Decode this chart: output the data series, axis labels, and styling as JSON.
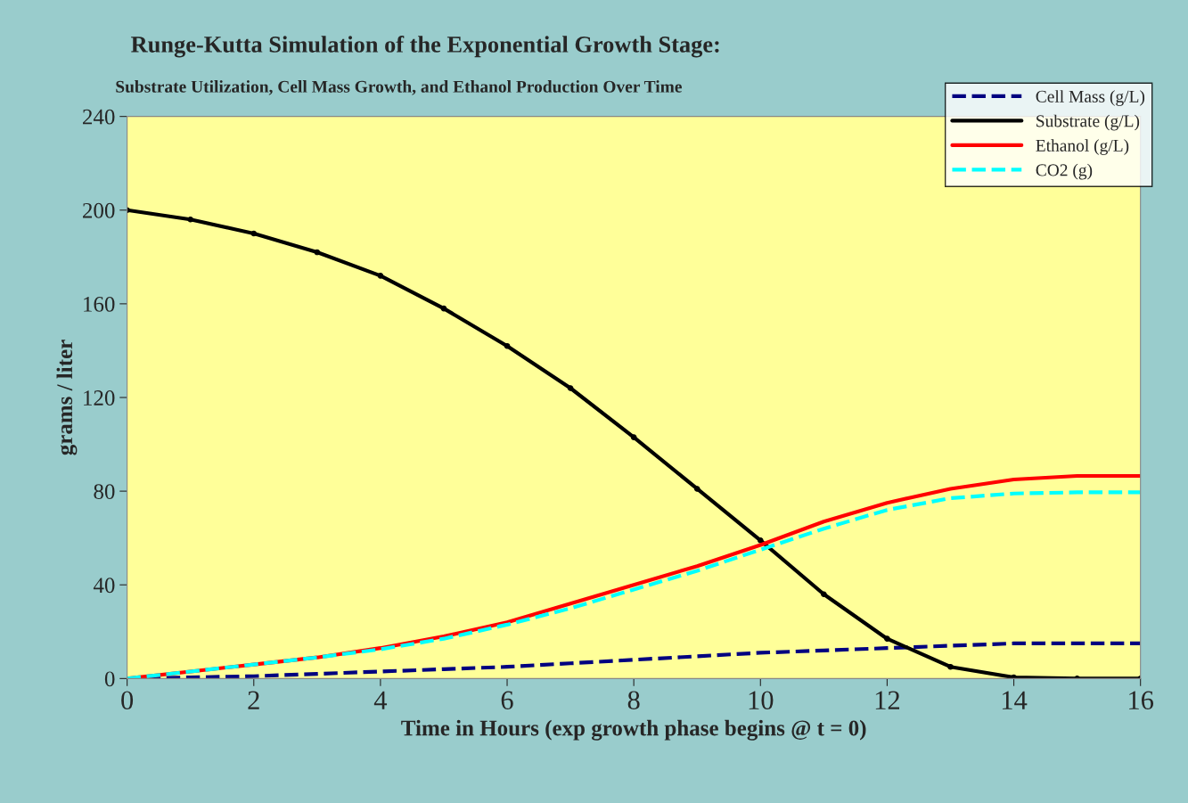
{
  "chart_data": {
    "type": "line",
    "title": "Runge-Kutta Simulation of the Exponential Growth Stage:",
    "subtitle": "Substrate Utilization, Cell Mass Growth, and Ethanol Production Over Time",
    "xlabel": "Time in Hours (exp growth phase begins @ t = 0)",
    "ylabel": "grams / liter",
    "x": [
      0,
      1,
      2,
      3,
      4,
      5,
      6,
      7,
      8,
      9,
      10,
      11,
      12,
      13,
      14,
      15,
      16
    ],
    "series": [
      {
        "name": "Cell Mass (g/L)",
        "color": "#000080",
        "line_style": "dashed",
        "values": [
          0,
          0.5,
          1,
          2,
          3,
          4,
          5,
          6.5,
          8,
          9.5,
          11,
          12,
          13,
          14,
          15,
          15,
          15
        ]
      },
      {
        "name": "Substrate (g/L)",
        "color": "#000000",
        "marker": "circle",
        "values": [
          200,
          196,
          190,
          182,
          172,
          158,
          142,
          124,
          103,
          81,
          59,
          36,
          17,
          5,
          0.5,
          0,
          0
        ]
      },
      {
        "name": "Ethanol (g/L)",
        "color": "#ff0000",
        "values": [
          0,
          3,
          6,
          9,
          13,
          18,
          24,
          32,
          40,
          48,
          57,
          67,
          75,
          81,
          85,
          86.5,
          86.5
        ]
      },
      {
        "name": "CO2 (g)",
        "color": "#00ffff",
        "line_style": "dashed",
        "values": [
          0,
          3,
          6,
          9,
          12.5,
          17,
          23,
          30,
          38,
          46,
          55,
          64,
          72,
          77,
          79,
          79.5,
          79.5
        ]
      }
    ],
    "xlim": [
      0,
      16
    ],
    "xticks": [
      0,
      2,
      4,
      6,
      8,
      10,
      12,
      14,
      16
    ],
    "ylim": [
      0,
      240
    ],
    "yticks": [
      0,
      40,
      80,
      120,
      160,
      200,
      240
    ],
    "grid": false,
    "legend": "top right"
  }
}
